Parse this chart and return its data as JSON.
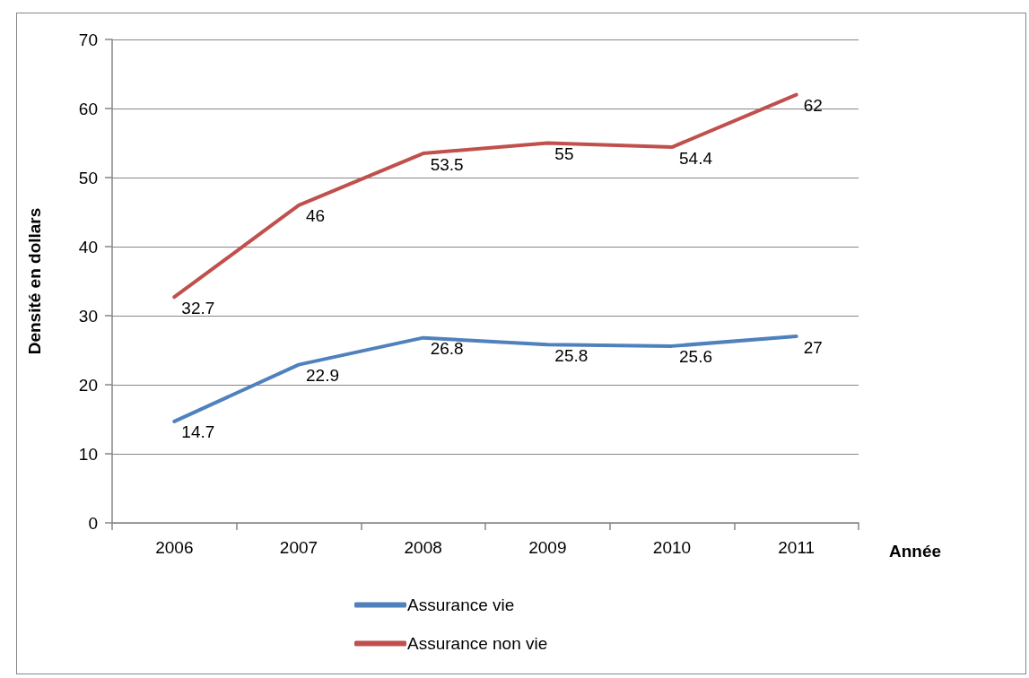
{
  "chart_data": {
    "type": "line",
    "xlabel": "Année",
    "ylabel": "Densité en dollars",
    "categories": [
      "2006",
      "2007",
      "2008",
      "2009",
      "2010",
      "2011"
    ],
    "series": [
      {
        "name": "Assurance vie",
        "color": "#4f81bd",
        "values": [
          14.7,
          22.9,
          26.8,
          25.8,
          25.6,
          27
        ]
      },
      {
        "name": "Assurance non vie",
        "color": "#c0504d",
        "values": [
          32.7,
          46,
          53.5,
          55,
          54.4,
          62
        ]
      }
    ],
    "ylim": [
      0,
      70
    ],
    "yticks": [
      0,
      10,
      20,
      30,
      40,
      50,
      60,
      70
    ],
    "grid": "y",
    "legend": "bottom",
    "data_labels": true,
    "marker": "none",
    "line_style": "solid"
  }
}
